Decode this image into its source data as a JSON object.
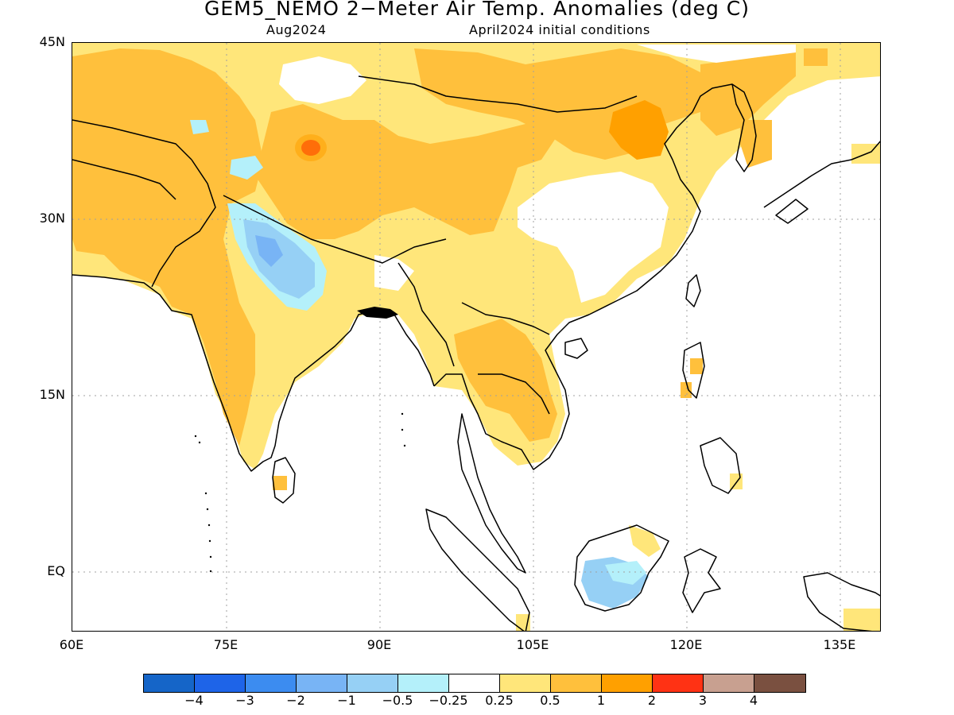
{
  "title": "GEM5_NEMO 2−Meter Air Temp. Anomalies (deg C)",
  "subtitle_left": "Aug2024",
  "subtitle_right": "April2024 initial conditions",
  "axes": {
    "lat_labels": [
      "45N",
      "30N",
      "15N",
      "EQ"
    ],
    "lon_labels": [
      "60E",
      "75E",
      "90E",
      "105E",
      "120E",
      "135E"
    ]
  },
  "colorbar": {
    "colors": [
      "#1565c8",
      "#1e64e8",
      "#3c8cf0",
      "#78b4f5",
      "#96d0f5",
      "#b4f0fa",
      "#ffffff",
      "#ffe67a",
      "#ffc03c",
      "#ffa000",
      "#ff3214",
      "#c8a090",
      "#7a5040"
    ],
    "labels": [
      "−4",
      "−3",
      "−2",
      "−1",
      "−0.5",
      "−0.25",
      "0.25",
      "0.5",
      "1",
      "2",
      "3",
      "4"
    ]
  },
  "anomaly_colors": {
    "light_yellow": "#ffe67a",
    "orange": "#ffc03c",
    "dark_orange": "#ffa000",
    "red": "#ff3214",
    "light_blue": "#b4f0fa",
    "mid_blue": "#96d0f5",
    "blue": "#78b4f5"
  }
}
